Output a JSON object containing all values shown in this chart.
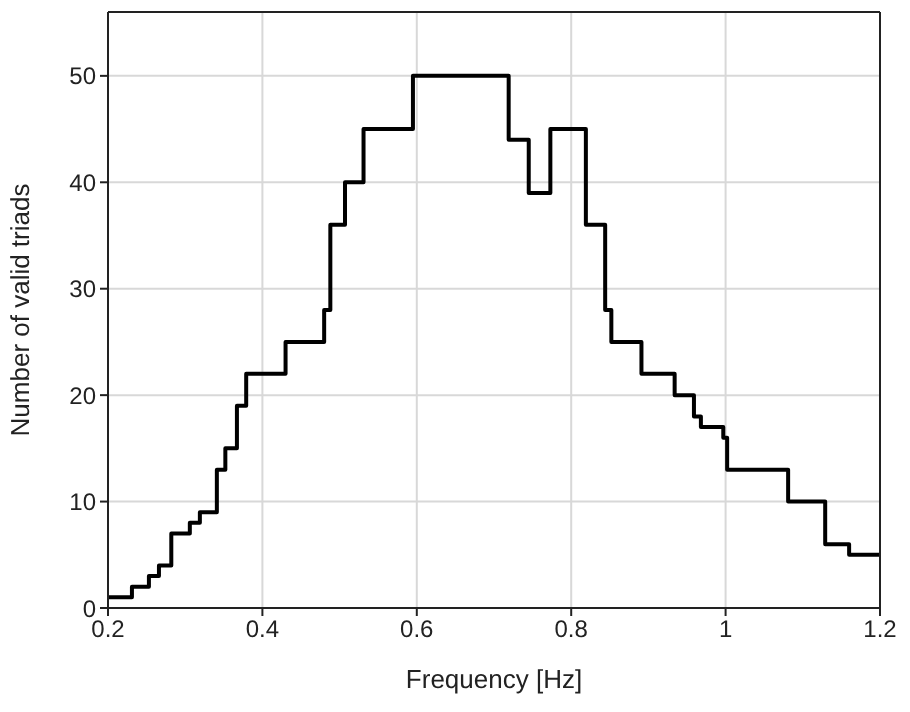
{
  "chart_data": {
    "type": "step",
    "xlabel": "Frequency [Hz]",
    "ylabel": "Number of valid triads",
    "x": [
      0.2,
      0.231,
      0.253,
      0.266,
      0.282,
      0.306,
      0.319,
      0.341,
      0.352,
      0.367,
      0.379,
      0.43,
      0.48,
      0.488,
      0.507,
      0.531,
      0.595,
      0.719,
      0.745,
      0.773,
      0.819,
      0.844,
      0.852,
      0.891,
      0.934,
      0.959,
      0.968,
      0.997,
      1.002,
      1.081,
      1.129,
      1.16,
      1.2
    ],
    "series": [
      {
        "color": "#000000",
        "values": [
          1,
          2,
          3,
          4,
          7,
          8,
          9,
          13,
          15,
          19,
          22,
          25,
          28,
          36,
          40,
          45,
          50,
          44,
          39,
          45,
          36,
          28,
          25,
          22,
          20,
          18,
          17,
          16,
          13,
          10,
          6,
          5,
          5
        ]
      }
    ],
    "xlim": [
      0.2,
      1.2
    ],
    "xticks": [
      0.2,
      0.4,
      0.6,
      0.8,
      1,
      1.2
    ],
    "ylim": [
      0,
      56
    ],
    "yticks": [
      0,
      10,
      20,
      30,
      40,
      50
    ],
    "grid": true,
    "marker": "none",
    "line_style": "solid",
    "legend": false
  }
}
